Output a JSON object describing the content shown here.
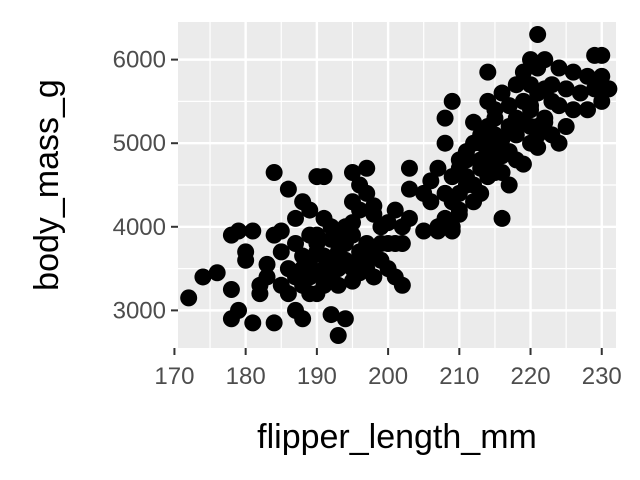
{
  "chart_data": {
    "type": "scatter",
    "title": "",
    "xlabel": "flipper_length_mm",
    "ylabel": "body_mass_g",
    "xlim": [
      170.5,
      232.0
    ],
    "ylim": [
      2550,
      6450
    ],
    "xticks": [
      170,
      180,
      190,
      200,
      210,
      220,
      230
    ],
    "yticks": [
      3000,
      4000,
      5000,
      6000
    ],
    "grid": true,
    "colors": {
      "panel": "#ebebeb",
      "grid": "#ffffff",
      "point": "#000000",
      "tick": "#333333"
    },
    "points": [
      [
        172,
        3150
      ],
      [
        174,
        3400
      ],
      [
        176,
        3450
      ],
      [
        178,
        3250
      ],
      [
        178,
        3900
      ],
      [
        178,
        2900
      ],
      [
        179,
        3950
      ],
      [
        179,
        3000
      ],
      [
        180,
        3700
      ],
      [
        180,
        3600
      ],
      [
        181,
        2850
      ],
      [
        181,
        3950
      ],
      [
        182,
        3200
      ],
      [
        182,
        3300
      ],
      [
        183,
        3400
      ],
      [
        183,
        3550
      ],
      [
        184,
        3900
      ],
      [
        184,
        4650
      ],
      [
        184,
        2850
      ],
      [
        185,
        3700
      ],
      [
        185,
        3300
      ],
      [
        185,
        3950
      ],
      [
        186,
        3500
      ],
      [
        186,
        3200
      ],
      [
        186,
        4450
      ],
      [
        187,
        3400
      ],
      [
        187,
        3800
      ],
      [
        187,
        3000
      ],
      [
        187,
        4100
      ],
      [
        188,
        3500
      ],
      [
        188,
        3300
      ],
      [
        188,
        2900
      ],
      [
        188,
        3650
      ],
      [
        188,
        4300
      ],
      [
        189,
        3400
      ],
      [
        189,
        3600
      ],
      [
        189,
        3900
      ],
      [
        189,
        3200
      ],
      [
        189,
        4200
      ],
      [
        190,
        3450
      ],
      [
        190,
        3700
      ],
      [
        190,
        3800
      ],
      [
        190,
        4600
      ],
      [
        190,
        3200
      ],
      [
        190,
        3900
      ],
      [
        191,
        3500
      ],
      [
        191,
        3300
      ],
      [
        191,
        4100
      ],
      [
        191,
        3650
      ],
      [
        191,
        4600
      ],
      [
        192,
        3400
      ],
      [
        192,
        3600
      ],
      [
        192,
        3850
      ],
      [
        192,
        2950
      ],
      [
        192,
        4000
      ],
      [
        193,
        3500
      ],
      [
        193,
        3900
      ],
      [
        193,
        2700
      ],
      [
        193,
        3300
      ],
      [
        193,
        3700
      ],
      [
        194,
        3600
      ],
      [
        194,
        3800
      ],
      [
        194,
        4000
      ],
      [
        194,
        2900
      ],
      [
        195,
        3500
      ],
      [
        195,
        3900
      ],
      [
        195,
        4300
      ],
      [
        195,
        3350
      ],
      [
        195,
        4050
      ],
      [
        195,
        4650
      ],
      [
        196,
        3700
      ],
      [
        196,
        4200
      ],
      [
        196,
        3450
      ],
      [
        196,
        4500
      ],
      [
        196,
        3600
      ],
      [
        197,
        3800
      ],
      [
        197,
        4400
      ],
      [
        197,
        3500
      ],
      [
        197,
        4700
      ],
      [
        198,
        4150
      ],
      [
        198,
        3650
      ],
      [
        198,
        4250
      ],
      [
        198,
        3400
      ],
      [
        199,
        3800
      ],
      [
        199,
        4000
      ],
      [
        199,
        3600
      ],
      [
        200,
        3800
      ],
      [
        200,
        4050
      ],
      [
        200,
        3500
      ],
      [
        201,
        4200
      ],
      [
        201,
        3800
      ],
      [
        201,
        3400
      ],
      [
        202,
        4000
      ],
      [
        202,
        3800
      ],
      [
        202,
        3300
      ],
      [
        203,
        4450
      ],
      [
        203,
        4100
      ],
      [
        203,
        4700
      ],
      [
        205,
        4400
      ],
      [
        205,
        3950
      ],
      [
        206,
        4550
      ],
      [
        206,
        4300
      ],
      [
        207,
        4700
      ],
      [
        207,
        4000
      ],
      [
        207,
        3950
      ],
      [
        208,
        4400
      ],
      [
        208,
        5000
      ],
      [
        208,
        4100
      ],
      [
        208,
        5300
      ],
      [
        209,
        4600
      ],
      [
        209,
        4300
      ],
      [
        209,
        5500
      ],
      [
        209,
        4000
      ],
      [
        209,
        3950
      ],
      [
        210,
        4800
      ],
      [
        210,
        4400
      ],
      [
        210,
        4150
      ],
      [
        210,
        4700
      ],
      [
        210,
        4200
      ],
      [
        211,
        4600
      ],
      [
        211,
        4900
      ],
      [
        211,
        4500
      ],
      [
        211,
        4800
      ],
      [
        212,
        5000
      ],
      [
        212,
        4500
      ],
      [
        212,
        4300
      ],
      [
        212,
        5250
      ],
      [
        213,
        4700
      ],
      [
        213,
        5000
      ],
      [
        213,
        4400
      ],
      [
        213,
        5100
      ],
      [
        213,
        4800
      ],
      [
        214,
        4850
      ],
      [
        214,
        5500
      ],
      [
        214,
        5850
      ],
      [
        214,
        4600
      ],
      [
        214,
        5200
      ],
      [
        215,
        5000
      ],
      [
        215,
        4700
      ],
      [
        215,
        5400
      ],
      [
        215,
        4900
      ],
      [
        215,
        5300
      ],
      [
        215,
        4650
      ],
      [
        215,
        5100
      ],
      [
        216,
        5050
      ],
      [
        216,
        4650
      ],
      [
        216,
        5600
      ],
      [
        216,
        4100
      ],
      [
        216,
        4850
      ],
      [
        217,
        5200
      ],
      [
        217,
        4900
      ],
      [
        217,
        5450
      ],
      [
        217,
        4500
      ],
      [
        218,
        5300
      ],
      [
        218,
        5700
      ],
      [
        218,
        4800
      ],
      [
        218,
        5100
      ],
      [
        219,
        5500
      ],
      [
        219,
        5250
      ],
      [
        219,
        4750
      ],
      [
        219,
        5850
      ],
      [
        220,
        5400
      ],
      [
        220,
        5000
      ],
      [
        220,
        5200
      ],
      [
        220,
        5700
      ],
      [
        220,
        6000
      ],
      [
        220,
        5450
      ],
      [
        221,
        5100
      ],
      [
        221,
        5600
      ],
      [
        221,
        5900
      ],
      [
        221,
        5200
      ],
      [
        221,
        4950
      ],
      [
        221,
        6300
      ],
      [
        222,
        5650
      ],
      [
        222,
        5300
      ],
      [
        222,
        6000
      ],
      [
        222,
        5250
      ],
      [
        223,
        5500
      ],
      [
        223,
        5100
      ],
      [
        223,
        5700
      ],
      [
        224,
        5450
      ],
      [
        224,
        5900
      ],
      [
        224,
        5000
      ],
      [
        225,
        5650
      ],
      [
        225,
        5200
      ],
      [
        226,
        5400
      ],
      [
        226,
        5850
      ],
      [
        227,
        5600
      ],
      [
        228,
        5800
      ],
      [
        228,
        5400
      ],
      [
        229,
        6050
      ],
      [
        229,
        5650
      ],
      [
        230,
        5500
      ],
      [
        230,
        5800
      ],
      [
        230,
        5700
      ],
      [
        230,
        6050
      ],
      [
        231,
        5650
      ]
    ]
  }
}
